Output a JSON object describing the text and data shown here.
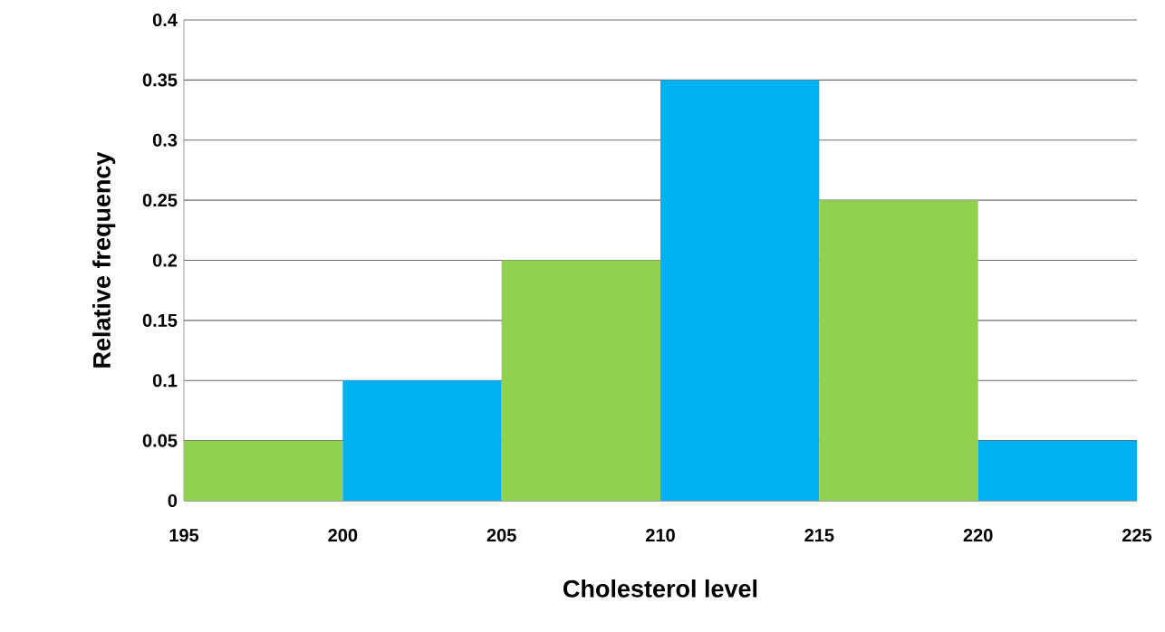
{
  "chart_data": {
    "type": "histogram",
    "xlabel": "Cholesterol level",
    "ylabel": "Relative frequency",
    "bins": [
      195,
      200,
      205,
      210,
      215,
      220,
      225
    ],
    "values": [
      0.05,
      0.1,
      0.2,
      0.35,
      0.25,
      0.05
    ],
    "colors": [
      "#92d050",
      "#00b0f0",
      "#92d050",
      "#00b0f0",
      "#92d050",
      "#00b0f0"
    ],
    "xlim": [
      195,
      225
    ],
    "xticks": [
      195,
      200,
      205,
      210,
      215,
      220,
      225
    ],
    "ylim": [
      0,
      0.4
    ],
    "yticks": [
      0,
      0.05,
      0.1,
      0.15,
      0.2,
      0.25,
      0.3,
      0.35,
      0.4
    ],
    "grid": "y"
  }
}
